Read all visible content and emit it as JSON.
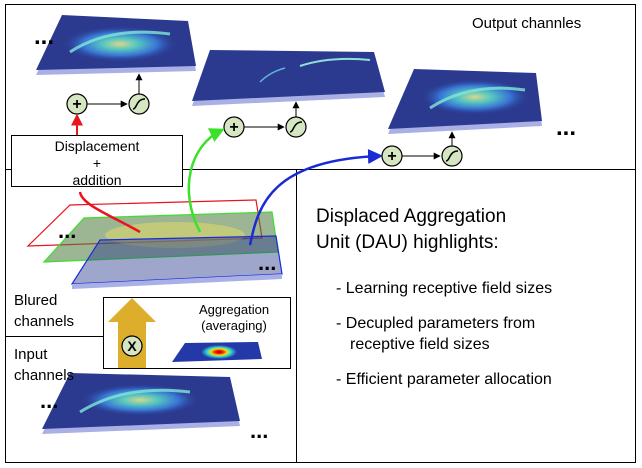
{
  "labels": {
    "output_channels": "Output channles",
    "displacement": "Displacement",
    "plus": "+",
    "addition": "addition",
    "blured": "Blured",
    "channels": "channels",
    "input": "Input",
    "aggregation": "Aggregation",
    "averaging": "(averaging)",
    "multiply": "X",
    "ellipsis": "..."
  },
  "highlights": {
    "title_line1": "Displaced Aggregation",
    "title_line2": "Unit (DAU) highlights:",
    "items": [
      {
        "line1": "- Learning receptive field sizes"
      },
      {
        "line1": "- Decupled parameters from",
        "line2": "receptive field sizes"
      },
      {
        "line1": "- Efficient parameter allocation"
      }
    ]
  },
  "colors": {
    "plane_blue": "#2b3a8f",
    "plane_edge": "#a9b0e6",
    "node_fill": "#d6e6c2",
    "red_path": "#e8141e",
    "green_path": "#3be02b",
    "blue_path": "#1a2bd6",
    "arrow_yellow": "#dcae2b"
  }
}
